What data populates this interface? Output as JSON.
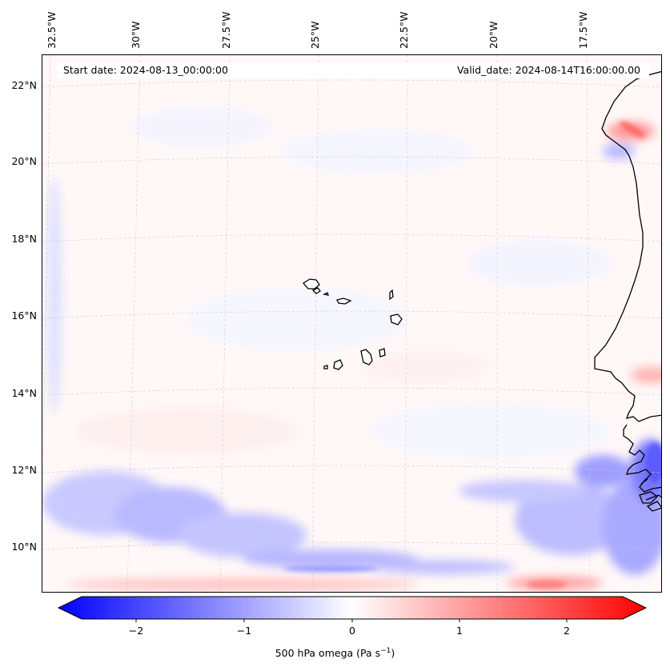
{
  "header": {
    "start_date": "Start date: 2024-08-13_00:00:00",
    "valid_date": "Valid_date: 2024-08-14T16:00:00.00"
  },
  "map": {
    "lon_ticks": [
      "32.5°W",
      "30°W",
      "27.5°W",
      "25°W",
      "22.5°W",
      "20°W",
      "17.5°W"
    ],
    "lat_ticks": [
      "22°N",
      "20°N",
      "18°N",
      "16°N",
      "14°N",
      "12°N",
      "10°N"
    ],
    "field_colors": {
      "negative": "#0000ff",
      "positive": "#ff0000",
      "zero": "#ffffff"
    }
  },
  "colorbar": {
    "tick_labels": [
      "−2",
      "−1",
      "0",
      "1",
      "2"
    ],
    "label_text": "500 hPa omega (Pa s",
    "label_exponent": "−1",
    "label_close": ")",
    "range": [
      -2.6,
      2.6
    ],
    "extend": "both",
    "colormap": "bwr"
  }
}
